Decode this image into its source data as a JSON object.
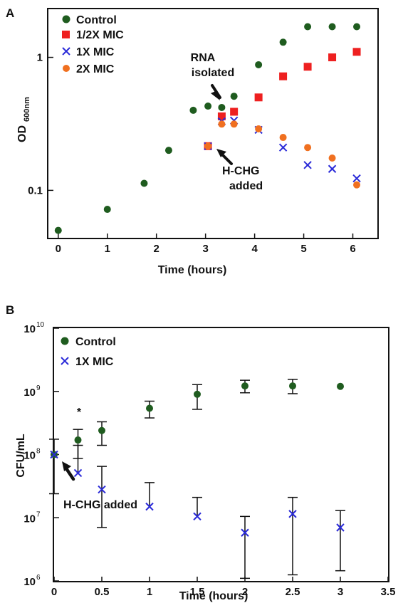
{
  "chart_data": [
    {
      "type": "scatter",
      "panel_label": "A",
      "xlabel": "Time (hours)",
      "ylabel_main": "OD",
      "ylabel_sub": "600nm",
      "x_scale": "linear",
      "y_scale": "log",
      "xlim": [
        -0.2,
        6.5
      ],
      "ylim": [
        0.044,
        2.3
      ],
      "x_ticks": [
        0,
        1,
        2,
        3,
        4,
        5,
        6
      ],
      "y_ticks": [
        0.1,
        1
      ],
      "y_tick_labels": [
        "0.1",
        "1"
      ],
      "legend_position": "top-left",
      "series": [
        {
          "name": "Control",
          "marker": "circle",
          "color": "#1f5c1f",
          "points": [
            [
              0,
              0.05
            ],
            [
              1,
              0.072
            ],
            [
              1.75,
              0.113
            ],
            [
              2.25,
              0.2
            ],
            [
              2.75,
              0.4
            ],
            [
              3.05,
              0.43
            ],
            [
              3.33,
              0.42
            ],
            [
              3.58,
              0.51
            ],
            [
              4.08,
              0.88
            ],
            [
              4.58,
              1.3
            ],
            [
              5.08,
              1.7
            ],
            [
              5.58,
              1.7
            ],
            [
              6.08,
              1.7
            ]
          ]
        },
        {
          "name": "1/2X MIC",
          "marker": "square",
          "color": "#ee2020",
          "points": [
            [
              3.05,
              0.215
            ],
            [
              3.33,
              0.36
            ],
            [
              3.58,
              0.39
            ],
            [
              4.08,
              0.5
            ],
            [
              4.58,
              0.72
            ],
            [
              5.08,
              0.85
            ],
            [
              5.58,
              1.0
            ],
            [
              6.08,
              1.1
            ]
          ]
        },
        {
          "name": "1X MIC",
          "marker": "x",
          "color": "#2a2ad8",
          "points": [
            [
              3.05,
              0.215
            ],
            [
              3.33,
              0.33
            ],
            [
              3.58,
              0.335
            ],
            [
              4.08,
              0.285
            ],
            [
              4.58,
              0.21
            ],
            [
              5.08,
              0.155
            ],
            [
              5.58,
              0.145
            ],
            [
              6.08,
              0.123
            ]
          ]
        },
        {
          "name": "2X MIC",
          "marker": "circle",
          "color": "#f07020",
          "points": [
            [
              3.05,
              0.215
            ],
            [
              3.33,
              0.315
            ],
            [
              3.58,
              0.315
            ],
            [
              4.08,
              0.29
            ],
            [
              4.58,
              0.25
            ],
            [
              5.08,
              0.21
            ],
            [
              5.58,
              0.175
            ],
            [
              6.08,
              0.11
            ]
          ]
        }
      ],
      "annotations": [
        {
          "lines": [
            "RNA",
            "isolated"
          ],
          "points_to": [
            3.33,
            0.42
          ]
        },
        {
          "lines": [
            "H-CHG",
            "added"
          ],
          "points_to": [
            3.05,
            0.215
          ]
        }
      ]
    },
    {
      "type": "scatter",
      "panel_label": "B",
      "xlabel": "Time (hours)",
      "ylabel": "CFU/mL",
      "x_scale": "linear",
      "y_scale": "log",
      "xlim": [
        0,
        3.5
      ],
      "ylim": [
        1000000,
        10000000000
      ],
      "x_ticks": [
        0,
        0.5,
        1,
        1.5,
        2,
        2.5,
        3,
        3.5
      ],
      "y_ticks": [
        1000000,
        10000000,
        100000000,
        1000000000,
        10000000000
      ],
      "y_tick_labels": [
        {
          "base": "10",
          "exp": "6"
        },
        {
          "base": "10",
          "exp": "7"
        },
        {
          "base": "10",
          "exp": "8"
        },
        {
          "base": "10",
          "exp": "9"
        },
        {
          "base": "10",
          "exp": "10"
        }
      ],
      "legend_position": "top-left",
      "series": [
        {
          "name": "Control",
          "marker": "circle",
          "color": "#1f5c1f",
          "points": [
            [
              0,
              100000000
            ],
            [
              0.25,
              170000000
            ],
            [
              0.5,
              240000000
            ],
            [
              1,
              540000000
            ],
            [
              1.5,
              900000000
            ],
            [
              2,
              1220000000
            ],
            [
              2.5,
              1220000000
            ],
            [
              3,
              1200000000
            ]
          ],
          "err_low": [
            24000000,
            87000000,
            140000000,
            380000000,
            520000000,
            950000000,
            920000000,
            null
          ],
          "err_high": [
            175000000,
            250000000,
            330000000,
            700000000,
            1280000000,
            1500000000,
            1550000000,
            null
          ]
        },
        {
          "name": "1X MIC",
          "marker": "x",
          "color": "#2a2ad8",
          "points": [
            [
              0,
              100000000
            ],
            [
              0.25,
              51000000
            ],
            [
              0.5,
              28000000
            ],
            [
              1,
              15000000
            ],
            [
              1.5,
              10500000
            ],
            [
              2,
              5800000
            ],
            [
              2.5,
              11500000
            ],
            [
              3,
              7000000
            ]
          ],
          "err_low": [
            null,
            null,
            7000000,
            null,
            null,
            1100000,
            1250000,
            1450000
          ],
          "err_high": [
            null,
            140000000,
            65000000,
            36000000,
            21000000,
            10500000,
            21000000,
            13000000
          ]
        }
      ],
      "markers": [
        {
          "text": "*",
          "x": 0.25
        }
      ],
      "annotations": [
        {
          "lines": [
            "H-CHG added"
          ],
          "points_to": [
            0,
            100000000
          ]
        }
      ]
    }
  ]
}
